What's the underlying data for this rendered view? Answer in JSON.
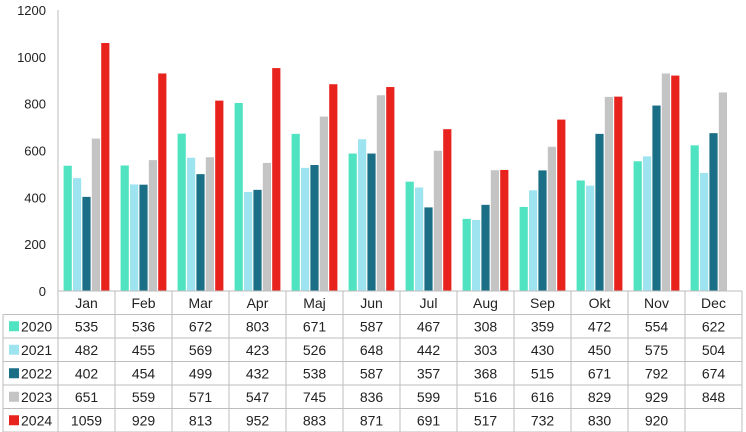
{
  "chart_data": {
    "type": "bar",
    "categories": [
      "Jan",
      "Feb",
      "Mar",
      "Apr",
      "Maj",
      "Jun",
      "Jul",
      "Aug",
      "Sep",
      "Okt",
      "Nov",
      "Dec"
    ],
    "yticks": [
      "0",
      "200",
      "400",
      "600",
      "800",
      "1000",
      "1200"
    ],
    "ylim": [
      0,
      1200
    ],
    "grid": false,
    "legend": "data-table",
    "series": [
      {
        "name": "2020",
        "color": "#50e3c2",
        "values": [
          535,
          536,
          672,
          803,
          671,
          587,
          467,
          308,
          359,
          472,
          554,
          622
        ]
      },
      {
        "name": "2021",
        "color": "#9ee3f0",
        "values": [
          482,
          455,
          569,
          423,
          526,
          648,
          442,
          303,
          430,
          450,
          575,
          504
        ]
      },
      {
        "name": "2022",
        "color": "#1a6e86",
        "values": [
          402,
          454,
          499,
          432,
          538,
          587,
          357,
          368,
          515,
          671,
          792,
          674
        ]
      },
      {
        "name": "2023",
        "color": "#c4c4c4",
        "values": [
          651,
          559,
          571,
          547,
          745,
          836,
          599,
          516,
          616,
          829,
          929,
          848
        ]
      },
      {
        "name": "2024",
        "color": "#e8221c",
        "values": [
          1059,
          929,
          813,
          952,
          883,
          871,
          691,
          517,
          732,
          830,
          920,
          null
        ]
      }
    ]
  }
}
